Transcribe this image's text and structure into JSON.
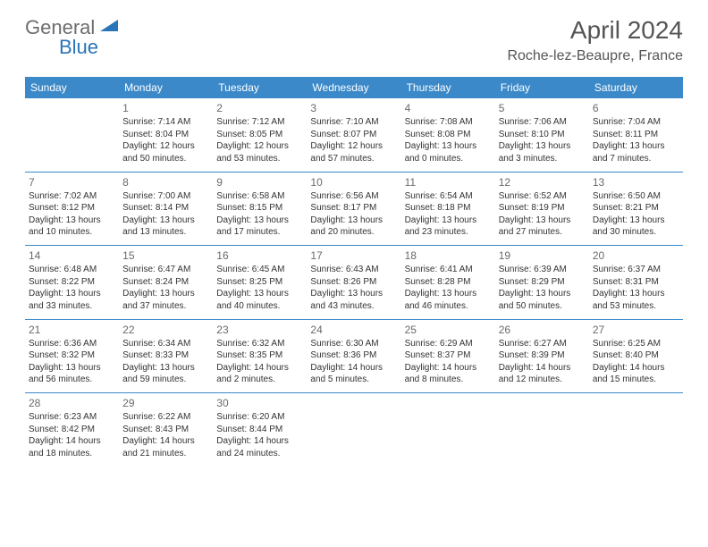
{
  "logo": {
    "general": "General",
    "blue": "Blue"
  },
  "title": "April 2024",
  "location": "Roche-lez-Beaupre, France",
  "columns": [
    "Sunday",
    "Monday",
    "Tuesday",
    "Wednesday",
    "Thursday",
    "Friday",
    "Saturday"
  ],
  "colors": {
    "header_bg": "#3b89c9",
    "header_text": "#ffffff",
    "logo_gray": "#6d6d6d",
    "logo_blue": "#2a74b8",
    "body_text": "#333333",
    "title_text": "#555555",
    "separator": "#3b89c9",
    "background": "#ffffff"
  },
  "fonts": {
    "title_size_pt": 21,
    "location_size_pt": 12,
    "column_header_size_pt": 9,
    "daynum_size_pt": 9,
    "cell_size_pt": 7.5,
    "family": "Arial"
  },
  "weeks": [
    [
      null,
      {
        "day": "1",
        "sunrise": "Sunrise: 7:14 AM",
        "sunset": "Sunset: 8:04 PM",
        "daylight1": "Daylight: 12 hours",
        "daylight2": "and 50 minutes."
      },
      {
        "day": "2",
        "sunrise": "Sunrise: 7:12 AM",
        "sunset": "Sunset: 8:05 PM",
        "daylight1": "Daylight: 12 hours",
        "daylight2": "and 53 minutes."
      },
      {
        "day": "3",
        "sunrise": "Sunrise: 7:10 AM",
        "sunset": "Sunset: 8:07 PM",
        "daylight1": "Daylight: 12 hours",
        "daylight2": "and 57 minutes."
      },
      {
        "day": "4",
        "sunrise": "Sunrise: 7:08 AM",
        "sunset": "Sunset: 8:08 PM",
        "daylight1": "Daylight: 13 hours",
        "daylight2": "and 0 minutes."
      },
      {
        "day": "5",
        "sunrise": "Sunrise: 7:06 AM",
        "sunset": "Sunset: 8:10 PM",
        "daylight1": "Daylight: 13 hours",
        "daylight2": "and 3 minutes."
      },
      {
        "day": "6",
        "sunrise": "Sunrise: 7:04 AM",
        "sunset": "Sunset: 8:11 PM",
        "daylight1": "Daylight: 13 hours",
        "daylight2": "and 7 minutes."
      }
    ],
    [
      {
        "day": "7",
        "sunrise": "Sunrise: 7:02 AM",
        "sunset": "Sunset: 8:12 PM",
        "daylight1": "Daylight: 13 hours",
        "daylight2": "and 10 minutes."
      },
      {
        "day": "8",
        "sunrise": "Sunrise: 7:00 AM",
        "sunset": "Sunset: 8:14 PM",
        "daylight1": "Daylight: 13 hours",
        "daylight2": "and 13 minutes."
      },
      {
        "day": "9",
        "sunrise": "Sunrise: 6:58 AM",
        "sunset": "Sunset: 8:15 PM",
        "daylight1": "Daylight: 13 hours",
        "daylight2": "and 17 minutes."
      },
      {
        "day": "10",
        "sunrise": "Sunrise: 6:56 AM",
        "sunset": "Sunset: 8:17 PM",
        "daylight1": "Daylight: 13 hours",
        "daylight2": "and 20 minutes."
      },
      {
        "day": "11",
        "sunrise": "Sunrise: 6:54 AM",
        "sunset": "Sunset: 8:18 PM",
        "daylight1": "Daylight: 13 hours",
        "daylight2": "and 23 minutes."
      },
      {
        "day": "12",
        "sunrise": "Sunrise: 6:52 AM",
        "sunset": "Sunset: 8:19 PM",
        "daylight1": "Daylight: 13 hours",
        "daylight2": "and 27 minutes."
      },
      {
        "day": "13",
        "sunrise": "Sunrise: 6:50 AM",
        "sunset": "Sunset: 8:21 PM",
        "daylight1": "Daylight: 13 hours",
        "daylight2": "and 30 minutes."
      }
    ],
    [
      {
        "day": "14",
        "sunrise": "Sunrise: 6:48 AM",
        "sunset": "Sunset: 8:22 PM",
        "daylight1": "Daylight: 13 hours",
        "daylight2": "and 33 minutes."
      },
      {
        "day": "15",
        "sunrise": "Sunrise: 6:47 AM",
        "sunset": "Sunset: 8:24 PM",
        "daylight1": "Daylight: 13 hours",
        "daylight2": "and 37 minutes."
      },
      {
        "day": "16",
        "sunrise": "Sunrise: 6:45 AM",
        "sunset": "Sunset: 8:25 PM",
        "daylight1": "Daylight: 13 hours",
        "daylight2": "and 40 minutes."
      },
      {
        "day": "17",
        "sunrise": "Sunrise: 6:43 AM",
        "sunset": "Sunset: 8:26 PM",
        "daylight1": "Daylight: 13 hours",
        "daylight2": "and 43 minutes."
      },
      {
        "day": "18",
        "sunrise": "Sunrise: 6:41 AM",
        "sunset": "Sunset: 8:28 PM",
        "daylight1": "Daylight: 13 hours",
        "daylight2": "and 46 minutes."
      },
      {
        "day": "19",
        "sunrise": "Sunrise: 6:39 AM",
        "sunset": "Sunset: 8:29 PM",
        "daylight1": "Daylight: 13 hours",
        "daylight2": "and 50 minutes."
      },
      {
        "day": "20",
        "sunrise": "Sunrise: 6:37 AM",
        "sunset": "Sunset: 8:31 PM",
        "daylight1": "Daylight: 13 hours",
        "daylight2": "and 53 minutes."
      }
    ],
    [
      {
        "day": "21",
        "sunrise": "Sunrise: 6:36 AM",
        "sunset": "Sunset: 8:32 PM",
        "daylight1": "Daylight: 13 hours",
        "daylight2": "and 56 minutes."
      },
      {
        "day": "22",
        "sunrise": "Sunrise: 6:34 AM",
        "sunset": "Sunset: 8:33 PM",
        "daylight1": "Daylight: 13 hours",
        "daylight2": "and 59 minutes."
      },
      {
        "day": "23",
        "sunrise": "Sunrise: 6:32 AM",
        "sunset": "Sunset: 8:35 PM",
        "daylight1": "Daylight: 14 hours",
        "daylight2": "and 2 minutes."
      },
      {
        "day": "24",
        "sunrise": "Sunrise: 6:30 AM",
        "sunset": "Sunset: 8:36 PM",
        "daylight1": "Daylight: 14 hours",
        "daylight2": "and 5 minutes."
      },
      {
        "day": "25",
        "sunrise": "Sunrise: 6:29 AM",
        "sunset": "Sunset: 8:37 PM",
        "daylight1": "Daylight: 14 hours",
        "daylight2": "and 8 minutes."
      },
      {
        "day": "26",
        "sunrise": "Sunrise: 6:27 AM",
        "sunset": "Sunset: 8:39 PM",
        "daylight1": "Daylight: 14 hours",
        "daylight2": "and 12 minutes."
      },
      {
        "day": "27",
        "sunrise": "Sunrise: 6:25 AM",
        "sunset": "Sunset: 8:40 PM",
        "daylight1": "Daylight: 14 hours",
        "daylight2": "and 15 minutes."
      }
    ],
    [
      {
        "day": "28",
        "sunrise": "Sunrise: 6:23 AM",
        "sunset": "Sunset: 8:42 PM",
        "daylight1": "Daylight: 14 hours",
        "daylight2": "and 18 minutes."
      },
      {
        "day": "29",
        "sunrise": "Sunrise: 6:22 AM",
        "sunset": "Sunset: 8:43 PM",
        "daylight1": "Daylight: 14 hours",
        "daylight2": "and 21 minutes."
      },
      {
        "day": "30",
        "sunrise": "Sunrise: 6:20 AM",
        "sunset": "Sunset: 8:44 PM",
        "daylight1": "Daylight: 14 hours",
        "daylight2": "and 24 minutes."
      },
      null,
      null,
      null,
      null
    ]
  ]
}
